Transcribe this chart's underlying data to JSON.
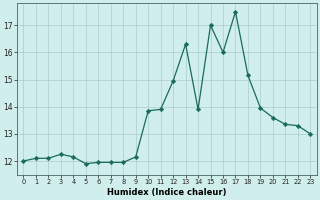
{
  "x": [
    0,
    1,
    2,
    3,
    4,
    5,
    6,
    7,
    8,
    9,
    10,
    11,
    12,
    13,
    14,
    15,
    16,
    17,
    18,
    19,
    20,
    21,
    22,
    23
  ],
  "y": [
    12.0,
    12.1,
    12.1,
    12.25,
    12.15,
    11.9,
    11.95,
    11.95,
    11.95,
    12.15,
    13.85,
    13.9,
    14.95,
    16.3,
    13.9,
    17.0,
    16.0,
    17.5,
    15.15,
    13.95,
    13.6,
    13.35,
    13.3,
    13.0
  ],
  "line_color": "#1a6b5a",
  "marker": "D",
  "marker_size": 2.2,
  "bg_color": "#d0eeec",
  "grid_color": "#aacccc",
  "grid_major_color": "#88aaaa",
  "xlabel": "Humidex (Indice chaleur)",
  "xlim": [
    -0.5,
    23.5
  ],
  "ylim": [
    11.5,
    17.8
  ],
  "yticks": [
    12,
    13,
    14,
    15,
    16,
    17
  ],
  "xtick_labels": [
    "0",
    "1",
    "2",
    "3",
    "4",
    "5",
    "6",
    "7",
    "8",
    "9",
    "10",
    "11",
    "12",
    "13",
    "14",
    "15",
    "16",
    "17",
    "18",
    "19",
    "20",
    "21",
    "22",
    "23"
  ]
}
